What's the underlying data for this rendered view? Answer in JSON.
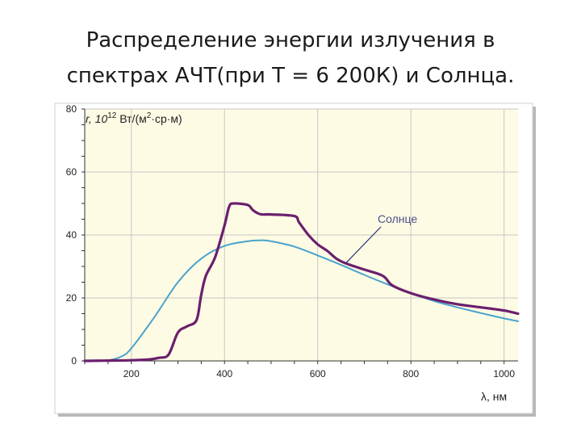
{
  "slide": {
    "title_line1": "Распределение энергии излучения в",
    "title_line2": "спектрах АЧТ(при Т = 6 200К) и Солнца."
  },
  "colors": {
    "plot_background": "#fdfbe4",
    "grid": "#c7c7c7",
    "blackbody_curve": "#4aa3cc",
    "sun_curve": "#6b1f6e",
    "annotation_arrow": "#2b2f7a"
  },
  "chart_data": {
    "type": "line",
    "title": "",
    "ylabel_prefix": "r, 10",
    "ylabel_exp": "12",
    "ylabel_mid": " Вт/(м",
    "ylabel_sq": "2",
    "ylabel_tail": "·ср·м)",
    "xlabel": "λ, нм",
    "xlim": [
      100,
      1030
    ],
    "ylim": [
      0,
      80
    ],
    "x_ticks": [
      200,
      400,
      600,
      800,
      1000
    ],
    "y_ticks": [
      0,
      20,
      40,
      60,
      80
    ],
    "grid": true,
    "annotation": {
      "text": "Солнце",
      "x": 660,
      "y": 31
    },
    "series": [
      {
        "name": "",
        "color": "#4aa3cc",
        "x": [
          100,
          150,
          180,
          200,
          250,
          300,
          350,
          400,
          450,
          480,
          500,
          550,
          600,
          650,
          700,
          750,
          800,
          850,
          900,
          950,
          1000,
          1030
        ],
        "y": [
          0,
          0.2,
          1.5,
          4,
          14,
          25,
          32.5,
          36.5,
          38,
          38.3,
          38,
          36.3,
          33.5,
          30.5,
          27.3,
          24.3,
          21.5,
          19,
          17,
          15.2,
          13.5,
          12.6
        ]
      },
      {
        "name": "Солнце",
        "color": "#6b1f6e",
        "x": [
          100,
          150,
          200,
          240,
          260,
          280,
          300,
          320,
          340,
          350,
          360,
          380,
          400,
          410,
          420,
          450,
          460,
          470,
          480,
          500,
          550,
          560,
          580,
          600,
          620,
          640,
          660,
          700,
          740,
          760,
          800,
          850,
          900,
          950,
          1000,
          1030
        ],
        "y": [
          0,
          0.1,
          0.2,
          0.5,
          1,
          2,
          9,
          11,
          13,
          21,
          27,
          33,
          43,
          49,
          50,
          49.5,
          48,
          47,
          46.5,
          46.5,
          46,
          44,
          40,
          37,
          35,
          32.5,
          31,
          29,
          27,
          24,
          21.5,
          19.5,
          18,
          17,
          16,
          15
        ]
      }
    ]
  }
}
